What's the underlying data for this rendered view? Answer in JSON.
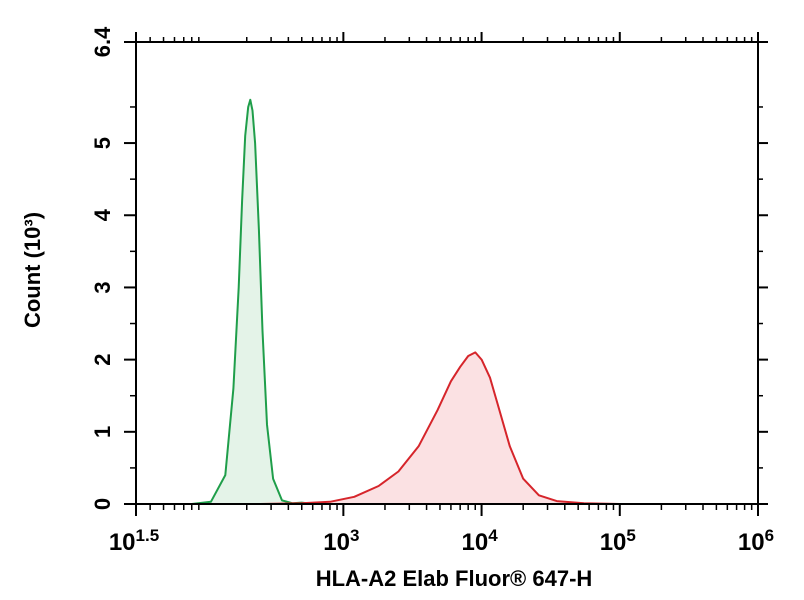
{
  "chart_data": {
    "type": "area",
    "title": "",
    "xlabel": "HLA-A2 Elab Fluor® 647-H",
    "ylabel": "Count (10³)",
    "x_scale": "log",
    "xlim": [
      31.6,
      1000000
    ],
    "ylim": [
      0,
      6.4
    ],
    "x_ticks": [
      {
        "value": 31.6,
        "base": "10",
        "exp": "1.5"
      },
      {
        "value": 1000,
        "base": "10",
        "exp": "3"
      },
      {
        "value": 10000,
        "base": "10",
        "exp": "4"
      },
      {
        "value": 100000,
        "base": "10",
        "exp": "5"
      },
      {
        "value": 1000000,
        "base": "10",
        "exp": "6"
      }
    ],
    "y_ticks": [
      "0",
      "1",
      "2",
      "3",
      "4",
      "5",
      "6.4"
    ],
    "grid": false,
    "legend": "none",
    "series": [
      {
        "color": "#1f9e4a",
        "fill": "#e4f3e8",
        "x": [
          80,
          110,
          140,
          160,
          175,
          185,
          195,
          205,
          212,
          220,
          230,
          245,
          260,
          280,
          310,
          360,
          430,
          500,
          600
        ],
        "y": [
          0,
          0.03,
          0.4,
          1.6,
          3.0,
          4.2,
          5.1,
          5.5,
          5.6,
          5.45,
          5.0,
          3.8,
          2.4,
          1.1,
          0.35,
          0.05,
          0.01,
          0.02,
          0
        ]
      },
      {
        "color": "#d6252b",
        "fill": "#fbe1e3",
        "x": [
          250,
          500,
          800,
          1200,
          1800,
          2500,
          3500,
          4800,
          6000,
          7000,
          8000,
          9000,
          10000,
          11500,
          13000,
          16000,
          20000,
          26000,
          35000,
          55000,
          100000
        ],
        "y": [
          0,
          0.01,
          0.03,
          0.1,
          0.25,
          0.45,
          0.8,
          1.3,
          1.7,
          1.9,
          2.05,
          2.1,
          2.0,
          1.75,
          1.4,
          0.8,
          0.35,
          0.12,
          0.04,
          0.01,
          0
        ]
      }
    ]
  }
}
